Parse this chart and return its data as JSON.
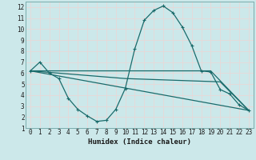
{
  "xlabel": "Humidex (Indice chaleur)",
  "bg_color": "#cce8ea",
  "grid_color": "#e8d8d8",
  "line_color": "#1a6b6b",
  "xlim": [
    -0.5,
    23.5
  ],
  "ylim": [
    1,
    12.5
  ],
  "xticks": [
    0,
    1,
    2,
    3,
    4,
    5,
    6,
    7,
    8,
    9,
    10,
    11,
    12,
    13,
    14,
    15,
    16,
    17,
    18,
    19,
    20,
    21,
    22,
    23
  ],
  "yticks": [
    1,
    2,
    3,
    4,
    5,
    6,
    7,
    8,
    9,
    10,
    11,
    12
  ],
  "line1_x": [
    0,
    1,
    2,
    3,
    4,
    5,
    6,
    7,
    8,
    9,
    10,
    11,
    12,
    13,
    14,
    15,
    16,
    17,
    18,
    19,
    20,
    21,
    22,
    23
  ],
  "line1_y": [
    6.2,
    7.0,
    6.0,
    5.5,
    3.7,
    2.7,
    2.1,
    1.6,
    1.7,
    2.7,
    4.6,
    8.2,
    10.8,
    11.7,
    12.1,
    11.5,
    10.2,
    8.5,
    6.2,
    6.1,
    4.5,
    4.1,
    3.1,
    2.6
  ],
  "line2_x": [
    0,
    19,
    23
  ],
  "line2_y": [
    6.2,
    6.2,
    2.6
  ],
  "line3_x": [
    0,
    23
  ],
  "line3_y": [
    6.2,
    2.6
  ],
  "line4_x": [
    0,
    10,
    20,
    23
  ],
  "line4_y": [
    6.2,
    5.5,
    5.2,
    2.6
  ],
  "font_color": "#1a1a1a",
  "tick_fontsize": 5.5,
  "xlabel_fontsize": 6.5
}
